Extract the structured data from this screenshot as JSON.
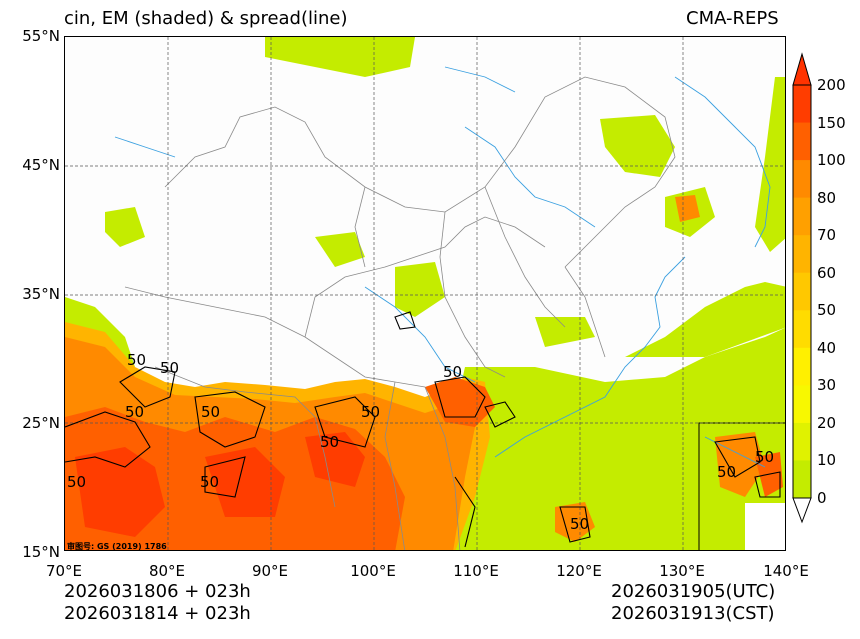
{
  "title": {
    "left": "cin, EM (shaded) & spread(line)",
    "right": "CMA-REPS"
  },
  "lat_labels": [
    "55°N",
    "45°N",
    "35°N",
    "25°N",
    "15°N"
  ],
  "lon_labels": [
    "70°E",
    "80°E",
    "90°E",
    "100°E",
    "110°E",
    "120°E",
    "130°E",
    "140°E"
  ],
  "colorbar": {
    "labels": [
      "200",
      "150",
      "100",
      "80",
      "70",
      "60",
      "50",
      "40",
      "30",
      "20",
      "10",
      "0"
    ],
    "colors": [
      "#ff3d00",
      "#ff6000",
      "#ff8a00",
      "#ffa000",
      "#ffb400",
      "#ffc800",
      "#ffdc00",
      "#fff000",
      "#f8f800",
      "#e0f200",
      "#c4ec00"
    ],
    "over_color": "#ff3300",
    "under_color": "#ffffff"
  },
  "contour_labels": [
    "50",
    "50",
    "50",
    "50",
    "50",
    "50",
    "50",
    "50",
    "50",
    "50",
    "50",
    "50"
  ],
  "review_no": "审图号: GS (2019) 1786",
  "bottom": {
    "init_1": "2026031806  +  023h",
    "init_2": "2026031814  +  023h",
    "valid_utc": "2026031905(UTC)",
    "valid_cst": "2026031913(CST)"
  }
}
